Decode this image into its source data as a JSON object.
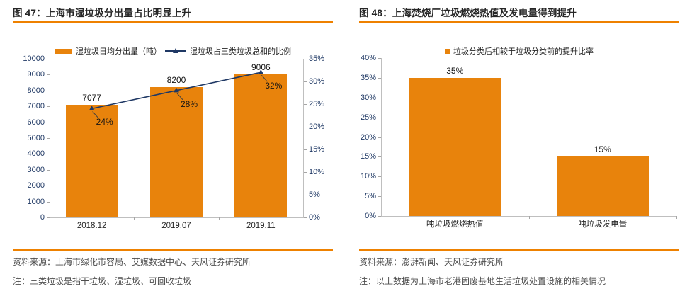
{
  "colors": {
    "accent_orange": "#E8830C",
    "rule_orange": "#EE8100",
    "navy": "#1F3864",
    "axis_line": "#BFBFBF",
    "tick": "#A6A6A6",
    "data_label": "#141414",
    "source_text": "#4D4D4D",
    "title_text": "#262626",
    "leader": "#404040"
  },
  "left_panel": {
    "title": "图 47：上海市湿垃圾分出量占比明显上升",
    "source": "资料来源：上海市绿化市容局、艾媒数据中心、天风证券研究所",
    "note": "注：三类垃圾是指干垃圾、湿垃圾、可回收垃圾"
  },
  "right_panel": {
    "title": "图 48：上海焚烧厂垃圾燃烧热值及发电量得到提升",
    "source": "资料来源：澎湃新闻、天风证券研究所",
    "note": "注：以上数据为上海市老港固废基地生活垃圾处置设施的相关情况"
  },
  "chart_data": [
    {
      "type": "bar",
      "subtype": "bar-line-combo",
      "categories": [
        "2018.12",
        "2019.07",
        "2019.11"
      ],
      "series": [
        {
          "name": "湿垃圾日均分出量（吨）",
          "type": "bar",
          "axis": "left",
          "values": [
            7077,
            8200,
            9006
          ],
          "labels": [
            "7077",
            "8200",
            "9006"
          ],
          "color": "#E8830C"
        },
        {
          "name": "湿垃圾占三类垃圾总和的比例",
          "type": "line",
          "axis": "right",
          "values": [
            24,
            28,
            32
          ],
          "labels": [
            "24%",
            "28%",
            "32%"
          ],
          "color": "#1F3864",
          "marker": "triangle"
        }
      ],
      "left_axis": {
        "min": 0,
        "max": 10000,
        "step": 1000,
        "ticks": [
          "0",
          "1000",
          "2000",
          "3000",
          "4000",
          "5000",
          "6000",
          "7000",
          "8000",
          "9000",
          "10000"
        ]
      },
      "right_axis": {
        "min": 0,
        "max": 35,
        "step": 5,
        "ticks": [
          "0%",
          "5%",
          "10%",
          "15%",
          "20%",
          "25%",
          "30%",
          "35%"
        ]
      },
      "legend_position": "top",
      "grid": false
    },
    {
      "type": "bar",
      "categories": [
        "吨垃圾燃烧热值",
        "吨垃圾发电量"
      ],
      "series": [
        {
          "name": "垃圾分类后相较于垃圾分类前的提升比率",
          "type": "bar",
          "axis": "left",
          "values": [
            35,
            15
          ],
          "labels": [
            "35%",
            "15%"
          ],
          "color": "#E8830C"
        }
      ],
      "left_axis": {
        "min": 0,
        "max": 40,
        "step": 5,
        "ticks": [
          "0%",
          "5%",
          "10%",
          "15%",
          "20%",
          "25%",
          "30%",
          "35%",
          "40%"
        ]
      },
      "legend_position": "top",
      "grid": false
    }
  ]
}
